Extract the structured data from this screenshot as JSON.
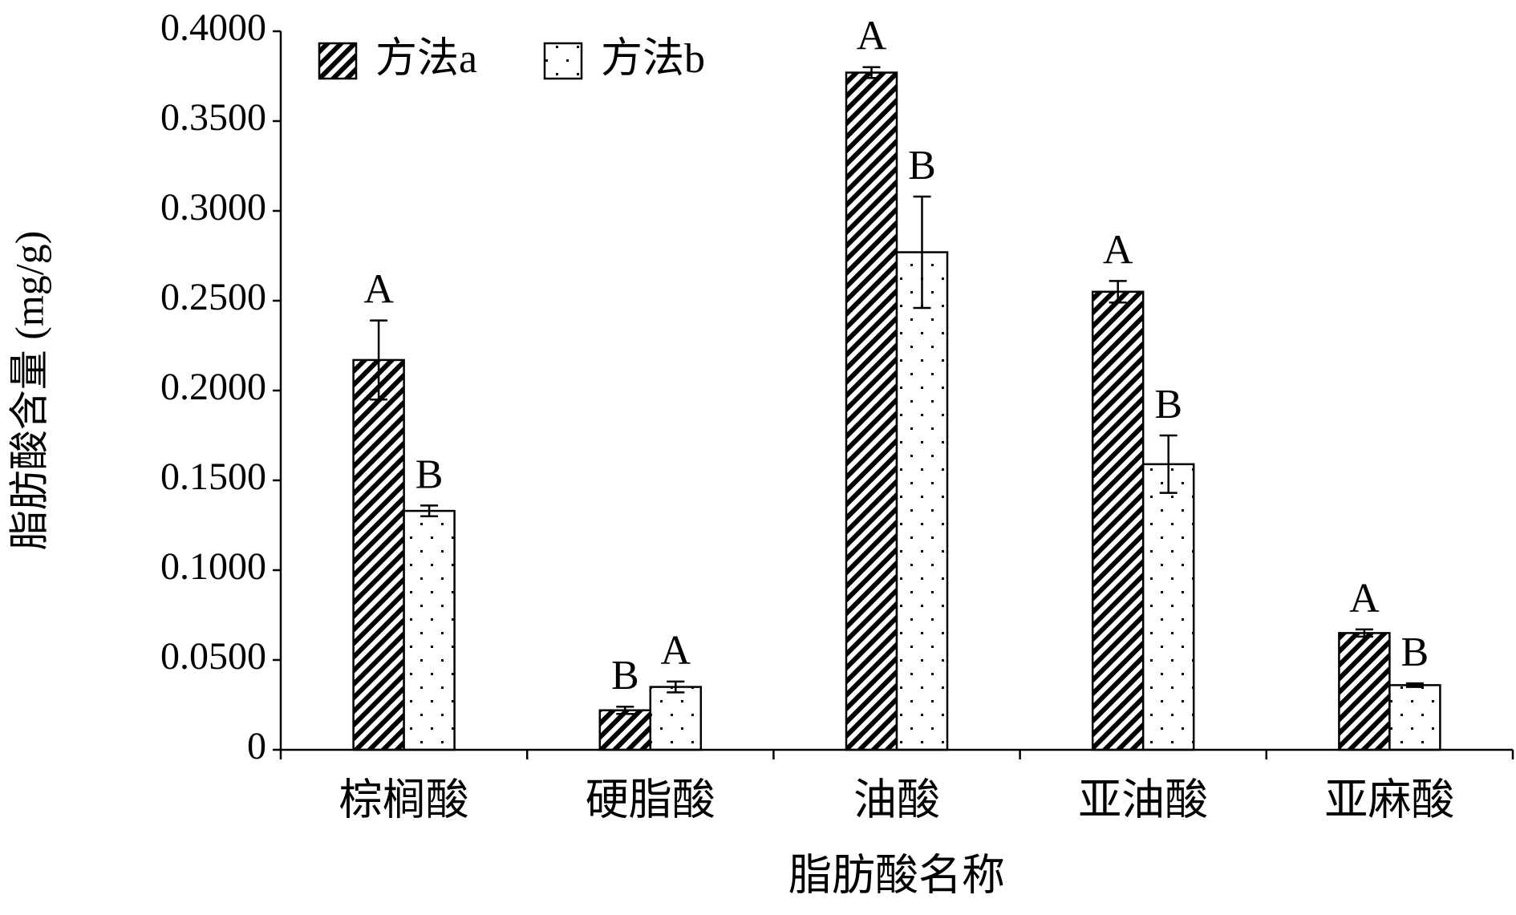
{
  "chart_data": {
    "type": "bar",
    "x_label": "脂肪酸名称",
    "y_label": "脂肪酸含量 (mg/g)",
    "categories": [
      "棕榈酸",
      "硬脂酸",
      "油酸",
      "亚油酸",
      "亚麻酸"
    ],
    "series": [
      {
        "name": "方法a",
        "color": "#000000",
        "pattern": "hatch",
        "values": [
          0.217,
          0.022,
          0.377,
          0.255,
          0.065
        ],
        "errors": [
          0.022,
          0.002,
          0.003,
          0.006,
          0.002
        ],
        "labels": [
          "A",
          "B",
          "A",
          "A",
          "A"
        ]
      },
      {
        "name": "方法b",
        "color": "#000000",
        "pattern": "dots",
        "values": [
          0.133,
          0.035,
          0.277,
          0.159,
          0.036
        ],
        "errors": [
          0.003,
          0.003,
          0.031,
          0.016,
          0.001
        ],
        "labels": [
          "B",
          "A",
          "B",
          "B",
          "B"
        ]
      }
    ],
    "ylim": [
      0,
      0.4
    ],
    "yticks": [
      0,
      {
        "value": 0.05,
        "label": "0.0500"
      },
      {
        "value": 0.1,
        "label": "0.1000"
      },
      {
        "value": 0.15,
        "label": "0.1500"
      },
      {
        "value": 0.2,
        "label": "0.2000"
      },
      {
        "value": 0.25,
        "label": "0.2500"
      },
      {
        "value": 0.3,
        "label": "0.3000"
      },
      {
        "value": 0.35,
        "label": "0.3500"
      },
      {
        "value": 0.4,
        "label": "0.4000"
      }
    ],
    "legend": "top-left"
  }
}
